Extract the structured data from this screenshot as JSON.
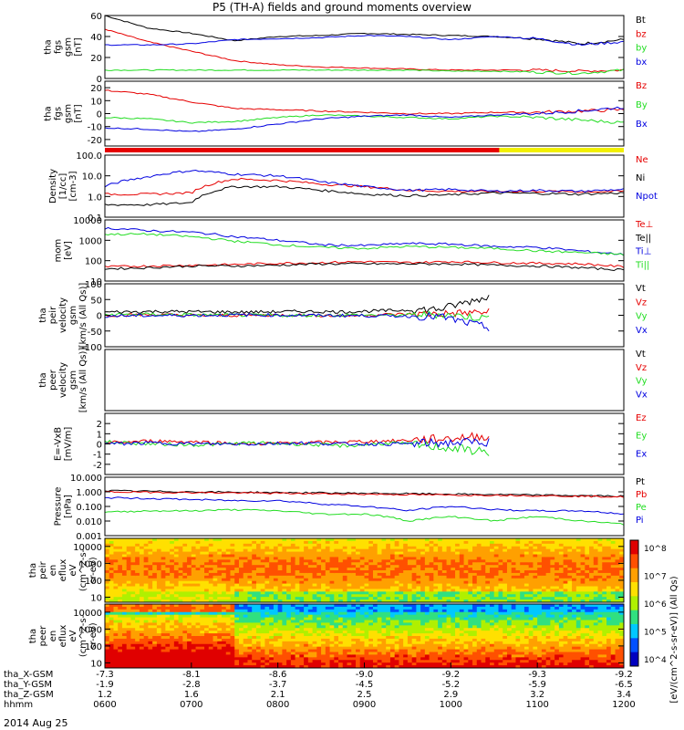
{
  "title": "P5 (TH-A) fields and ground moments overview",
  "date_label": "2014 Aug 25",
  "colors": {
    "black": "#000000",
    "red": "#e60000",
    "green": "#22dd22",
    "blue": "#0000e0",
    "yellow": "#f2f000"
  },
  "chart_data": [
    {
      "id": "p1",
      "type": "line",
      "ylabel": [
        "tha",
        "fgs",
        "gsm",
        "[nT]"
      ],
      "yticks": [
        "0",
        "20",
        "40",
        "60"
      ],
      "ylim": [
        0,
        60
      ],
      "log": false,
      "series": [
        {
          "name": "Bt",
          "color": "black",
          "values": [
            60,
            48,
            43,
            36,
            40,
            41,
            43,
            42,
            41,
            40,
            38,
            33,
            37
          ]
        },
        {
          "name": "bz",
          "color": "red",
          "values": [
            47,
            35,
            26,
            17,
            13,
            11,
            10,
            9,
            8,
            8,
            8,
            7,
            8
          ]
        },
        {
          "name": "by",
          "color": "green",
          "values": [
            8,
            8,
            8,
            8,
            8,
            8,
            8,
            8,
            7,
            7,
            6,
            5,
            8
          ]
        },
        {
          "name": "bx",
          "color": "blue",
          "values": [
            32,
            32,
            33,
            37,
            38,
            39,
            41,
            40,
            37,
            40,
            38,
            32,
            35
          ]
        }
      ]
    },
    {
      "id": "p2",
      "type": "line",
      "ylabel": [
        "tha",
        "fgs",
        "gsm",
        "[nT]"
      ],
      "yticks": [
        "-20",
        "-10",
        "0",
        "10",
        "20"
      ],
      "ylim": [
        -25,
        25
      ],
      "log": false,
      "series": [
        {
          "name": "Bz",
          "color": "red",
          "values": [
            18,
            15,
            9,
            4,
            3,
            2,
            1,
            0,
            0,
            1,
            1,
            2,
            3
          ]
        },
        {
          "name": "By",
          "color": "green",
          "values": [
            -3,
            -4,
            -7,
            -6,
            -3,
            -1,
            -2,
            -3,
            -4,
            -2,
            -3,
            -5,
            -7
          ]
        },
        {
          "name": "Bx",
          "color": "blue",
          "values": [
            -11,
            -12,
            -14,
            -12,
            -8,
            -4,
            -2,
            -1,
            -3,
            -1,
            0,
            2,
            5
          ]
        }
      ]
    },
    {
      "id": "p3",
      "type": "line",
      "ylabel": [
        "Density",
        "[1/cc]",
        "[cm-3]"
      ],
      "yticks": [
        "0.1",
        "1.0",
        "10.0",
        "100.0"
      ],
      "ylim": [
        0.1,
        100
      ],
      "log": true,
      "series": [
        {
          "name": "Ne",
          "color": "red",
          "values": [
            1.3,
            1.3,
            1.5,
            7,
            6,
            4,
            3,
            2,
            1.8,
            1.7,
            1.8,
            1.7,
            1.8
          ]
        },
        {
          "name": "Ni",
          "color": "black",
          "values": [
            0.4,
            0.4,
            0.5,
            3,
            3,
            2,
            1.3,
            1.1,
            1.2,
            1.5,
            1.4,
            1.3,
            1.5
          ]
        },
        {
          "name": "Npot",
          "color": "blue",
          "values": [
            3,
            9,
            18,
            12,
            10,
            5,
            3,
            2,
            2.2,
            1.8,
            2,
            1.8,
            2.2
          ]
        }
      ]
    },
    {
      "id": "p4",
      "type": "line",
      "ylabel": [
        "mom",
        "[eV]"
      ],
      "yticks": [
        "10",
        "100",
        "1000",
        "10000"
      ],
      "ylim": [
        10,
        10000
      ],
      "log": true,
      "series": [
        {
          "name": "Te⊥",
          "color": "red",
          "values": [
            50,
            55,
            60,
            65,
            75,
            80,
            90,
            80,
            90,
            80,
            75,
            70,
            50
          ]
        },
        {
          "name": "Te||",
          "color": "black",
          "values": [
            40,
            45,
            55,
            55,
            60,
            70,
            70,
            70,
            70,
            60,
            55,
            45,
            35
          ]
        },
        {
          "name": "Ti⊥",
          "color": "blue",
          "values": [
            4000,
            3000,
            2500,
            1500,
            1000,
            600,
            550,
            700,
            650,
            500,
            450,
            300,
            200
          ]
        },
        {
          "name": "Ti||",
          "color": "green",
          "values": [
            2000,
            2000,
            1500,
            900,
            600,
            450,
            400,
            500,
            450,
            400,
            300,
            250,
            200
          ]
        }
      ]
    },
    {
      "id": "p5",
      "type": "line",
      "ylabel": [
        "tha",
        "peir",
        "velocity",
        "gsm",
        "[km/s (All Qs)]"
      ],
      "yticks": [
        "-100",
        "-50",
        "0",
        "50",
        "100"
      ],
      "ylim": [
        -100,
        100
      ],
      "log": false,
      "series": [
        {
          "name": "Vt",
          "color": "black",
          "values": [
            10,
            12,
            11,
            10,
            12,
            11,
            15,
            20,
            60
          ]
        },
        {
          "name": "Vz",
          "color": "red",
          "values": [
            0,
            2,
            -1,
            0,
            1,
            -2,
            3,
            5,
            10
          ]
        },
        {
          "name": "Vy",
          "color": "green",
          "values": [
            2,
            3,
            1,
            0,
            -1,
            1,
            0,
            3,
            -10
          ]
        },
        {
          "name": "Vx",
          "color": "blue",
          "values": [
            -2,
            -1,
            0,
            1,
            0,
            -1,
            -2,
            -5,
            -40
          ]
        }
      ]
    },
    {
      "id": "p6",
      "type": "line",
      "ylabel": [
        "tha",
        "peer",
        "velocity",
        "gsm",
        "[km/s (All Qs)]"
      ],
      "yticks": [],
      "ylim": [
        -100,
        100
      ],
      "log": false,
      "series": [
        {
          "name": "Vt",
          "color": "black",
          "values": []
        },
        {
          "name": "Vz",
          "color": "red",
          "values": []
        },
        {
          "name": "Vy",
          "color": "green",
          "values": []
        },
        {
          "name": "Vx",
          "color": "blue",
          "values": []
        }
      ]
    },
    {
      "id": "p7",
      "type": "line",
      "ylabel": [
        "E=-VxB",
        "[mV/m]"
      ],
      "yticks": [
        "-2",
        "-1",
        "0",
        "1",
        "2"
      ],
      "ylim": [
        -3,
        3
      ],
      "log": false,
      "series": [
        {
          "name": "Ez",
          "color": "red",
          "values": [
            0.1,
            0.3,
            0.2,
            0,
            0.1,
            0.2,
            0.3,
            0.5,
            0.8
          ]
        },
        {
          "name": "Ey",
          "color": "green",
          "values": [
            0.2,
            0,
            -0.1,
            0.1,
            0,
            -0.2,
            0.1,
            -0.3,
            -0.8
          ]
        },
        {
          "name": "Ex",
          "color": "blue",
          "values": [
            0,
            0.1,
            0,
            0,
            0.1,
            0,
            0,
            0.1,
            0.2
          ]
        }
      ]
    },
    {
      "id": "p8",
      "type": "line",
      "ylabel": [
        "Pressure",
        "[nPa]"
      ],
      "yticks": [
        "0.001",
        "0.010",
        "0.100",
        "1.000",
        "10.000"
      ],
      "ylim": [
        0.001,
        10
      ],
      "log": true,
      "series": [
        {
          "name": "Pt",
          "color": "black",
          "values": [
            1.2,
            1.1,
            1.0,
            0.95,
            0.9,
            0.85,
            0.8,
            0.75,
            0.7,
            0.65,
            0.6,
            0.55,
            0.5
          ]
        },
        {
          "name": "Pb",
          "color": "red",
          "values": [
            1.0,
            0.95,
            0.9,
            0.85,
            0.8,
            0.75,
            0.7,
            0.65,
            0.6,
            0.6,
            0.55,
            0.5,
            0.45
          ]
        },
        {
          "name": "Pe",
          "color": "green",
          "values": [
            0.04,
            0.05,
            0.05,
            0.06,
            0.05,
            0.03,
            0.03,
            0.01,
            0.02,
            0.01,
            0.02,
            0.01,
            0.006
          ]
        },
        {
          "name": "Pi",
          "color": "blue",
          "values": [
            0.4,
            0.35,
            0.3,
            0.25,
            0.25,
            0.15,
            0.1,
            0.05,
            0.1,
            0.06,
            0.05,
            0.05,
            0.03
          ]
        }
      ]
    },
    {
      "id": "p9",
      "type": "heatmap",
      "ylabel": [
        "tha",
        "peir",
        "en",
        "eflux",
        "eV",
        "(cm^2-s-",
        "sr-eV)"
      ],
      "yticks": [
        "10",
        "100",
        "1000",
        "10000"
      ],
      "ylim": [
        5,
        30000
      ],
      "log": true
    },
    {
      "id": "p10",
      "type": "heatmap",
      "ylabel": [
        "tha",
        "peer",
        "en",
        "eflux",
        "eV",
        "(cm^2-s-",
        "sr-eV)"
      ],
      "yticks": [
        "10",
        "100",
        "1000",
        "10000"
      ],
      "ylim": [
        5,
        30000
      ],
      "log": true
    }
  ],
  "colorbar": {
    "label": "[eV/(cm^2-s-sr-eV)] (All Qs)",
    "ticks": [
      "10^4",
      "10^5",
      "10^6",
      "10^7",
      "10^8"
    ]
  },
  "mode_bar": {
    "segments": [
      {
        "color": "red",
        "from": 0,
        "to": 0.76
      },
      {
        "color": "yellow",
        "from": 0.76,
        "to": 1
      }
    ]
  },
  "x_axis": {
    "rows": [
      {
        "label": "tha_X-GSM",
        "values": [
          "-7.3",
          "-8.1",
          "-8.6",
          "-9.0",
          "-9.2",
          "-9.3",
          "-9.2"
        ]
      },
      {
        "label": "tha_Y-GSM",
        "values": [
          "-1.9",
          "-2.8",
          "-3.7",
          "-4.5",
          "-5.2",
          "-5.9",
          "-6.5"
        ]
      },
      {
        "label": "tha_Z-GSM",
        "values": [
          "1.2",
          "1.6",
          "2.1",
          "2.5",
          "2.9",
          "3.2",
          "3.4"
        ]
      },
      {
        "label": "hhmm",
        "values": [
          "0600",
          "0700",
          "0800",
          "0900",
          "1000",
          "1100",
          "1200"
        ]
      }
    ]
  }
}
